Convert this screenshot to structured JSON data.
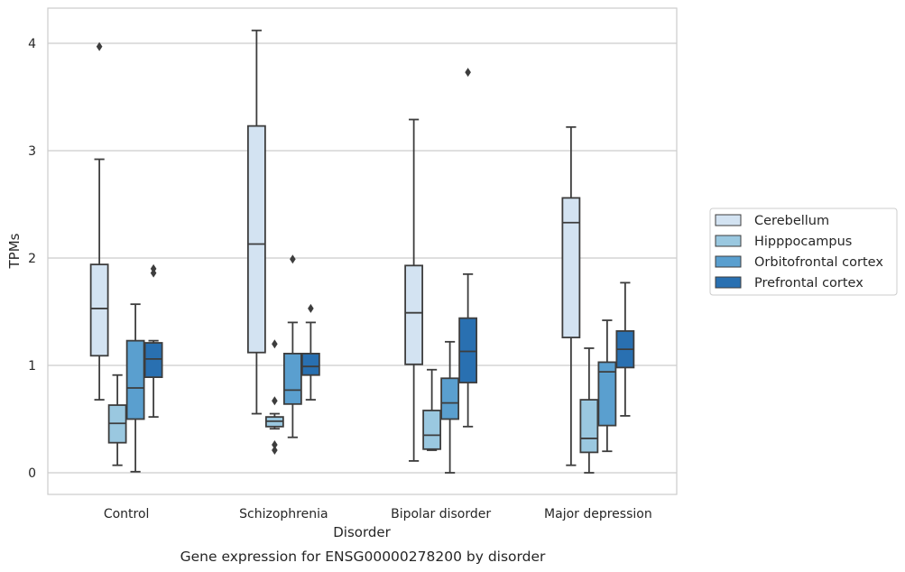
{
  "chart_data": {
    "type": "box",
    "caption": "Gene expression for ENSG00000278200 by disorder",
    "xlabel": "Disorder",
    "ylabel": "TPMs",
    "ylim": [
      -0.2,
      4.33
    ],
    "yticks": [
      0,
      1,
      2,
      3,
      4
    ],
    "grid": "horizontal",
    "legend_position": "right",
    "categories": [
      "Control",
      "Schizophrenia",
      "Bipolar disorder",
      "Major depression"
    ],
    "series": [
      {
        "name": "Cerebellum",
        "color": "#d3e3f2",
        "boxes": [
          {
            "whisker_low": 0.68,
            "q1": 1.09,
            "median": 1.53,
            "q3": 1.94,
            "whisker_high": 2.92,
            "outliers": [
              3.97
            ]
          },
          {
            "whisker_low": 0.55,
            "q1": 1.12,
            "median": 2.13,
            "q3": 3.23,
            "whisker_high": 4.12,
            "outliers": []
          },
          {
            "whisker_low": 0.11,
            "q1": 1.01,
            "median": 1.49,
            "q3": 1.93,
            "whisker_high": 3.29,
            "outliers": []
          },
          {
            "whisker_low": 0.07,
            "q1": 1.26,
            "median": 2.33,
            "q3": 2.56,
            "whisker_high": 3.22,
            "outliers": []
          }
        ]
      },
      {
        "name": "Hipppocampus",
        "color": "#9ac8e0",
        "boxes": [
          {
            "whisker_low": 0.07,
            "q1": 0.28,
            "median": 0.46,
            "q3": 0.63,
            "whisker_high": 0.91,
            "outliers": []
          },
          {
            "whisker_low": 0.41,
            "q1": 0.43,
            "median": 0.48,
            "q3": 0.52,
            "whisker_high": 0.55,
            "outliers": [
              1.2,
              0.67,
              0.26,
              0.21
            ]
          },
          {
            "whisker_low": 0.21,
            "q1": 0.22,
            "median": 0.35,
            "q3": 0.58,
            "whisker_high": 0.96,
            "outliers": []
          },
          {
            "whisker_low": 0.0,
            "q1": 0.19,
            "median": 0.32,
            "q3": 0.68,
            "whisker_high": 1.16,
            "outliers": []
          }
        ]
      },
      {
        "name": "Orbitofrontal cortex",
        "color": "#5a9fcf",
        "boxes": [
          {
            "whisker_low": 0.01,
            "q1": 0.5,
            "median": 0.79,
            "q3": 1.23,
            "whisker_high": 1.57,
            "outliers": []
          },
          {
            "whisker_low": 0.33,
            "q1": 0.64,
            "median": 0.77,
            "q3": 1.11,
            "whisker_high": 1.4,
            "outliers": [
              1.99
            ]
          },
          {
            "whisker_low": 0.0,
            "q1": 0.5,
            "median": 0.65,
            "q3": 0.88,
            "whisker_high": 1.22,
            "outliers": []
          },
          {
            "whisker_low": 0.2,
            "q1": 0.44,
            "median": 0.94,
            "q3": 1.03,
            "whisker_high": 1.42,
            "outliers": []
          }
        ]
      },
      {
        "name": "Prefrontal cortex",
        "color": "#2970b1",
        "boxes": [
          {
            "whisker_low": 0.52,
            "q1": 0.89,
            "median": 1.06,
            "q3": 1.21,
            "whisker_high": 1.23,
            "outliers": [
              1.86,
              1.9
            ]
          },
          {
            "whisker_low": 0.68,
            "q1": 0.91,
            "median": 0.99,
            "q3": 1.11,
            "whisker_high": 1.4,
            "outliers": [
              1.53
            ]
          },
          {
            "whisker_low": 0.43,
            "q1": 0.84,
            "median": 1.13,
            "q3": 1.44,
            "whisker_high": 1.85,
            "outliers": [
              3.73
            ]
          },
          {
            "whisker_low": 0.53,
            "q1": 0.98,
            "median": 1.15,
            "q3": 1.32,
            "whisker_high": 1.77,
            "outliers": []
          }
        ]
      }
    ]
  }
}
